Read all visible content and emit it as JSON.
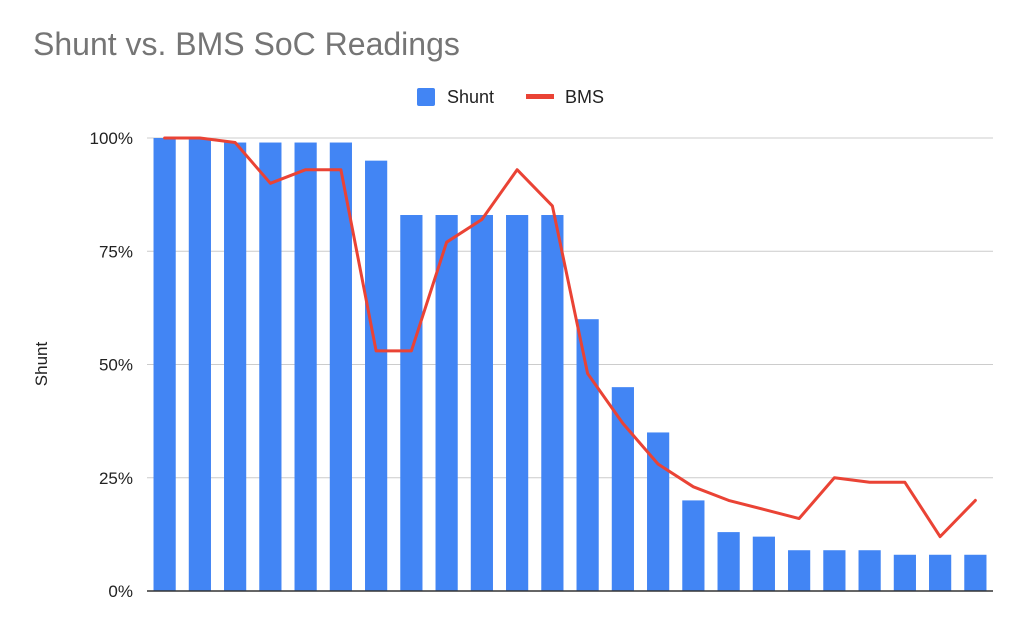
{
  "chart_data": {
    "type": "bar",
    "title": "Shunt vs. BMS SoC Readings",
    "ylabel": "Shunt",
    "xlabel": "",
    "ylim": [
      0,
      100
    ],
    "yticks": [
      "0%",
      "25%",
      "50%",
      "75%",
      "100%"
    ],
    "yticks_values": [
      0,
      25,
      50,
      75,
      100
    ],
    "legend_position": "top-center",
    "grid": true,
    "series": [
      {
        "name": "Shunt",
        "type": "bar",
        "color": "#4285f4",
        "values": [
          100,
          100,
          99,
          99,
          99,
          99,
          95,
          83,
          83,
          83,
          83,
          83,
          60,
          45,
          35,
          20,
          13,
          12,
          9,
          9,
          9,
          8,
          8,
          8
        ]
      },
      {
        "name": "BMS",
        "type": "line",
        "color": "#ea4335",
        "values": [
          100,
          100,
          99,
          90,
          93,
          93,
          53,
          53,
          77,
          82,
          93,
          85,
          48,
          37,
          28,
          23,
          20,
          18,
          16,
          25,
          24,
          24,
          12,
          20
        ]
      }
    ]
  }
}
